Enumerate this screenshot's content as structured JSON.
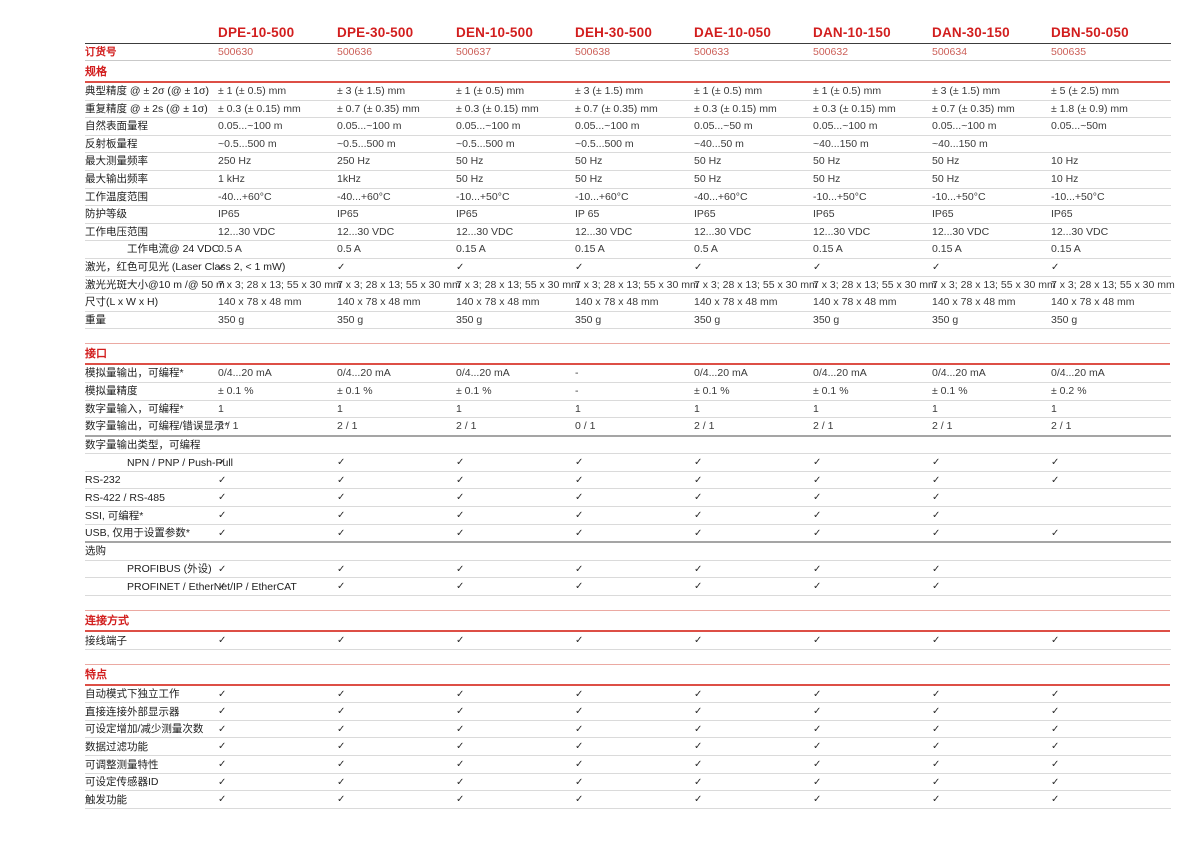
{
  "colors": {
    "accent": "#d21e1e",
    "accent_line": "#dd4f46",
    "accent_soft": "#eba9a2",
    "order_value": "#cc6059"
  },
  "table": {
    "order_label": "订货号",
    "products": [
      {
        "name": "DPE-10-500",
        "order_no": "500630"
      },
      {
        "name": "DPE-30-500",
        "order_no": "500636"
      },
      {
        "name": "DEN-10-500",
        "order_no": "500637"
      },
      {
        "name": "DEH-30-500",
        "order_no": "500638"
      },
      {
        "name": "DAE-10-050",
        "order_no": "500633"
      },
      {
        "name": "DAN-10-150",
        "order_no": "500632"
      },
      {
        "name": "DAN-30-150",
        "order_no": "500634"
      },
      {
        "name": "DBN-50-050",
        "order_no": "500635"
      }
    ],
    "sections": [
      {
        "title": "规格",
        "rows": [
          {
            "label": "典型精度 @ ± 2σ (@ ± 1σ)",
            "values": [
              "± 1 (± 0.5) mm",
              "± 3 (± 1.5) mm",
              "± 1 (± 0.5) mm",
              "± 3 (± 1.5) mm",
              "± 1 (± 0.5) mm",
              "± 1 (± 0.5) mm",
              "± 3 (± 1.5) mm",
              "± 5 (± 2.5) mm"
            ]
          },
          {
            "label": "重复精度 @ ± 2s (@ ± 1σ)",
            "values": [
              "± 0.3 (± 0.15) mm",
              "± 0.7 (± 0.35) mm",
              "± 0.3 (± 0.15) mm",
              "± 0.7 (± 0.35) mm",
              "± 0.3 (± 0.15) mm",
              "± 0.3 (± 0.15) mm",
              "± 0.7 (± 0.35) mm",
              "± 1.8 (± 0.9) mm"
            ]
          },
          {
            "label": "自然表面量程",
            "values": [
              "0.05...~100 m",
              "0.05...~100 m",
              "0.05...~100 m",
              "0.05...~100 m",
              "0.05...~50 m",
              "0.05...~100 m",
              "0.05...~100 m",
              "0.05...~50m"
            ]
          },
          {
            "label": "反射板量程",
            "values": [
              "~0.5...500 m",
              "~0.5...500 m",
              "~0.5...500 m",
              "~0.5...500 m",
              "~40...50 m",
              "~40...150 m",
              "~40...150 m",
              ""
            ]
          },
          {
            "label": "最大测量频率",
            "values": [
              "250 Hz",
              "250 Hz",
              "50 Hz",
              "50 Hz",
              "50 Hz",
              "50 Hz",
              "50 Hz",
              "10 Hz"
            ]
          },
          {
            "label": "最大输出频率",
            "values": [
              "1 kHz",
              "1kHz",
              "50 Hz",
              "50 Hz",
              "50 Hz",
              "50 Hz",
              "50 Hz",
              "10 Hz"
            ]
          },
          {
            "label": "工作温度范围",
            "values": [
              "-40...+60°C",
              "-40...+60°C",
              "-10...+50°C",
              "-10...+60°C",
              "-40...+60°C",
              "-10...+50°C",
              "-10...+50°C",
              "-10...+50°C"
            ]
          },
          {
            "label": "防护等级",
            "values": [
              "IP65",
              "IP65",
              "IP65",
              "IP 65",
              "IP65",
              "IP65",
              "IP65",
              "IP65"
            ]
          },
          {
            "label": "工作电压范围",
            "values": [
              "12...30 VDC",
              "12...30 VDC",
              "12...30 VDC",
              "12...30 VDC",
              "12...30 VDC",
              "12...30 VDC",
              "12...30 VDC",
              "12...30 VDC"
            ]
          },
          {
            "label": "工作电流@ 24 VDC",
            "indent": true,
            "values": [
              "0.5 A",
              "0.5 A",
              "0.15 A",
              "0.15 A",
              "0.5 A",
              "0.15 A",
              "0.15 A",
              "0.15 A"
            ]
          },
          {
            "label": "激光，红色可见光 (Laser Class 2, < 1 mW)",
            "values": [
              "✓",
              "✓",
              "✓",
              "✓",
              "✓",
              "✓",
              "✓",
              "✓"
            ]
          },
          {
            "label": "激光光斑大小@10 m /@ 50 m",
            "values": [
              "7 x 3; 28 x 13; 55 x 30 mm",
              "7 x 3; 28 x 13; 55 x 30 mm",
              "7 x 3; 28 x 13; 55 x 30 mm",
              "7 x 3; 28 x 13; 55 x 30 mm",
              "7 x 3; 28 x 13; 55 x 30 mm",
              "7 x 3; 28 x 13; 55 x 30 mm",
              "7 x 3; 28 x 13; 55 x 30 mm",
              "7 x 3; 28 x 13; 55 x 30 mm"
            ]
          },
          {
            "label": "尺寸(L x W x H)",
            "values": [
              "140 x 78 x 48 mm",
              "140 x 78 x 48 mm",
              "140 x 78 x 48 mm",
              "140 x 78 x 48 mm",
              "140 x 78 x 48 mm",
              "140 x 78 x 48 mm",
              "140 x 78 x 48 mm",
              "140 x 78 x 48 mm"
            ]
          },
          {
            "label": "重量",
            "values": [
              "350 g",
              "350 g",
              "350 g",
              "350 g",
              "350 g",
              "350 g",
              "350 g",
              "350 g"
            ]
          }
        ]
      },
      {
        "title": "接口",
        "rows": [
          {
            "label": "模拟量输出，可编程*",
            "values": [
              "0/4...20 mA",
              "0/4...20 mA",
              "0/4...20 mA",
              "-",
              "0/4...20 mA",
              "0/4...20 mA",
              "0/4...20 mA",
              "0/4...20 mA"
            ]
          },
          {
            "label": "模拟量精度",
            "values": [
              "± 0.1 %",
              "± 0.1 %",
              "± 0.1 %",
              "-",
              "± 0.1 %",
              "± 0.1 %",
              "± 0.1 %",
              "± 0.2 %"
            ]
          },
          {
            "label": "数字量输入，可编程*",
            "values": [
              "1",
              "1",
              "1",
              "1",
              "1",
              "1",
              "1",
              "1"
            ]
          },
          {
            "label": "数字量输出，可编程/错误显示*",
            "group_end": true,
            "values": [
              "2 / 1",
              "2 / 1",
              "2 / 1",
              "0 / 1",
              "2 / 1",
              "2 / 1",
              "2 / 1",
              "2 / 1"
            ]
          },
          {
            "label": "数字量输出类型，可编程",
            "subheader": true,
            "values": [
              "",
              "",
              "",
              "",
              "",
              "",
              "",
              ""
            ]
          },
          {
            "label": "NPN / PNP / Push-Pull",
            "indent": true,
            "values": [
              "✓",
              "✓",
              "✓",
              "✓",
              "✓",
              "✓",
              "✓",
              "✓"
            ]
          },
          {
            "label": "RS-232",
            "values": [
              "✓",
              "✓",
              "✓",
              "✓",
              "✓",
              "✓",
              "✓",
              "✓"
            ]
          },
          {
            "label": "RS-422 / RS-485",
            "values": [
              "✓",
              "✓",
              "✓",
              "✓",
              "✓",
              "✓",
              "✓",
              ""
            ]
          },
          {
            "label": "SSI, 可编程*",
            "values": [
              "✓",
              "✓",
              "✓",
              "✓",
              "✓",
              "✓",
              "✓",
              ""
            ]
          },
          {
            "label": "USB, 仅用于设置参数*",
            "group_end": true,
            "values": [
              "✓",
              "✓",
              "✓",
              "✓",
              "✓",
              "✓",
              "✓",
              "✓"
            ]
          },
          {
            "label": "选购",
            "subheader": true,
            "values": [
              "",
              "",
              "",
              "",
              "",
              "",
              "",
              ""
            ]
          },
          {
            "label": "PROFIBUS (外设)",
            "indent": true,
            "values": [
              "✓",
              "✓",
              "✓",
              "✓",
              "✓",
              "✓",
              "✓",
              ""
            ]
          },
          {
            "label": "PROFINET / EtherNet/IP / EtherCAT",
            "indent": true,
            "values": [
              "✓",
              "✓",
              "✓",
              "✓",
              "✓",
              "✓",
              "✓",
              ""
            ]
          }
        ]
      },
      {
        "title": "连接方式",
        "rows": [
          {
            "label": "接线端子",
            "values": [
              "✓",
              "✓",
              "✓",
              "✓",
              "✓",
              "✓",
              "✓",
              "✓"
            ]
          }
        ]
      },
      {
        "title": "特点",
        "rows": [
          {
            "label": "自动模式下独立工作",
            "values": [
              "✓",
              "✓",
              "✓",
              "✓",
              "✓",
              "✓",
              "✓",
              "✓"
            ]
          },
          {
            "label": "直接连接外部显示器",
            "values": [
              "✓",
              "✓",
              "✓",
              "✓",
              "✓",
              "✓",
              "✓",
              "✓"
            ]
          },
          {
            "label": "可设定增加/减少测量次数",
            "values": [
              "✓",
              "✓",
              "✓",
              "✓",
              "✓",
              "✓",
              "✓",
              "✓"
            ]
          },
          {
            "label": "数据过滤功能",
            "values": [
              "✓",
              "✓",
              "✓",
              "✓",
              "✓",
              "✓",
              "✓",
              "✓"
            ]
          },
          {
            "label": "可调整测量特性",
            "values": [
              "✓",
              "✓",
              "✓",
              "✓",
              "✓",
              "✓",
              "✓",
              "✓"
            ]
          },
          {
            "label": "可设定传感器ID",
            "values": [
              "✓",
              "✓",
              "✓",
              "✓",
              "✓",
              "✓",
              "✓",
              "✓"
            ]
          },
          {
            "label": "触发功能",
            "values": [
              "✓",
              "✓",
              "✓",
              "✓",
              "✓",
              "✓",
              "✓",
              "✓"
            ]
          }
        ]
      }
    ]
  }
}
